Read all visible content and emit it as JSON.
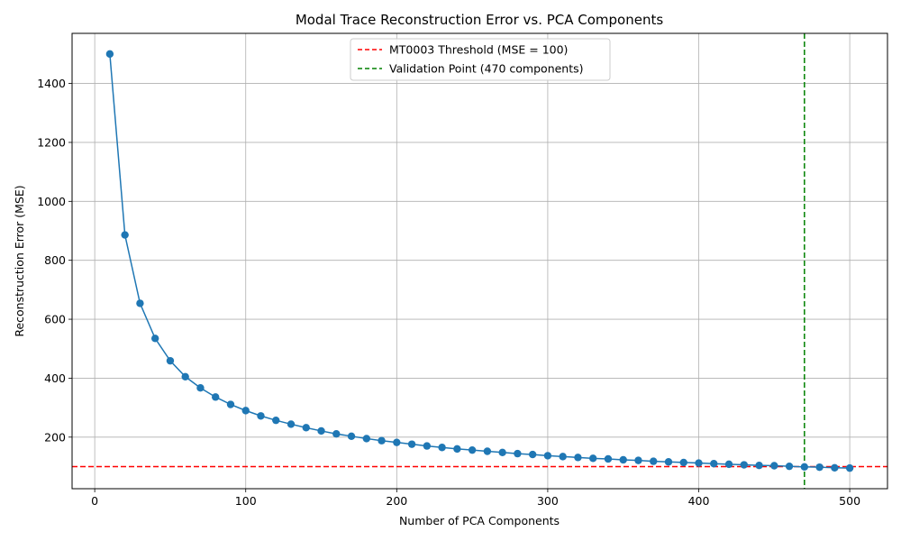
{
  "chart_data": {
    "type": "line",
    "title": "Modal Trace Reconstruction Error vs. PCA Components",
    "xlabel": "Number of PCA Components",
    "ylabel": "Reconstruction Error (MSE)",
    "xlim": [
      -15,
      525
    ],
    "ylim": [
      25,
      1570
    ],
    "xticks": [
      0,
      100,
      200,
      300,
      400,
      500
    ],
    "yticks": [
      200,
      400,
      600,
      800,
      1000,
      1200,
      1400
    ],
    "grid": true,
    "legend_position": "top-center",
    "series": [
      {
        "name": "Reconstruction Error",
        "color": "#1f77b4",
        "marker": "circle",
        "x": [
          10,
          20,
          30,
          40,
          50,
          60,
          70,
          80,
          90,
          100,
          110,
          120,
          130,
          140,
          150,
          160,
          170,
          180,
          190,
          200,
          210,
          220,
          230,
          240,
          250,
          260,
          270,
          280,
          290,
          300,
          310,
          320,
          330,
          340,
          350,
          360,
          370,
          380,
          390,
          400,
          410,
          420,
          430,
          440,
          450,
          460,
          470,
          480,
          490,
          500
        ],
        "y": [
          1500,
          886,
          654,
          535,
          459,
          405,
          367,
          336,
          311,
          290,
          272,
          257,
          244,
          232,
          221,
          211,
          203,
          195,
          188,
          182,
          176,
          170,
          165,
          160,
          156,
          152,
          148,
          144,
          141,
          137,
          134,
          131,
          128,
          126,
          123,
          121,
          118,
          116,
          114,
          112,
          110,
          108,
          106,
          104,
          103,
          101,
          99,
          98,
          96,
          95
        ]
      }
    ],
    "reference_lines": [
      {
        "orientation": "horizontal",
        "value": 100,
        "color": "#ff0000",
        "style": "dashed",
        "label": "MT0003 Threshold (MSE = 100)"
      },
      {
        "orientation": "vertical",
        "value": 470,
        "color": "#008000",
        "style": "dashed",
        "label": "Validation Point (470 components)"
      }
    ]
  }
}
